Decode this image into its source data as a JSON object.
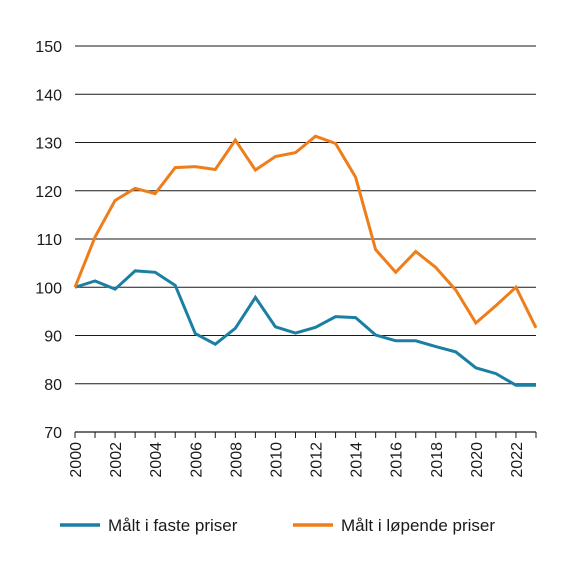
{
  "chart_data": {
    "type": "line",
    "x": [
      2000,
      2001,
      2002,
      2003,
      2004,
      2005,
      2006,
      2007,
      2008,
      2009,
      2010,
      2011,
      2012,
      2013,
      2014,
      2015,
      2016,
      2017,
      2018,
      2019,
      2020,
      2021,
      2022,
      2023
    ],
    "xticks": [
      "2000",
      "2002",
      "2004",
      "2006",
      "2008",
      "2010",
      "2012",
      "2014",
      "2016",
      "2018",
      "2020",
      "2022"
    ],
    "yticks": [
      "70",
      "80",
      "90",
      "100",
      "110",
      "120",
      "130",
      "140",
      "150"
    ],
    "xlim": [
      2000,
      2023
    ],
    "ylim": [
      70,
      150
    ],
    "grid": "horizontal",
    "legend_position": "bottom",
    "series": [
      {
        "name": "Målt i faste priser",
        "color": "#1a7fa3",
        "values": [
          100,
          101.3,
          99.6,
          103.4,
          103.1,
          100.4,
          90.4,
          88.2,
          91.5,
          97.9,
          91.8,
          90.5,
          91.7,
          93.9,
          93.7,
          90.1,
          88.9,
          88.9,
          87.7,
          86.6,
          83.3,
          82.1,
          79.7,
          79.7
        ]
      },
      {
        "name": "Målt i løpende priser",
        "color": "#ef7d1a",
        "values": [
          100,
          110.4,
          118.0,
          120.5,
          119.4,
          124.8,
          125.0,
          124.4,
          130.5,
          124.3,
          127.1,
          127.9,
          131.3,
          129.8,
          122.8,
          107.8,
          103.1,
          107.4,
          104.1,
          99.4,
          92.6,
          96.2,
          100.0,
          91.6
        ]
      }
    ]
  }
}
